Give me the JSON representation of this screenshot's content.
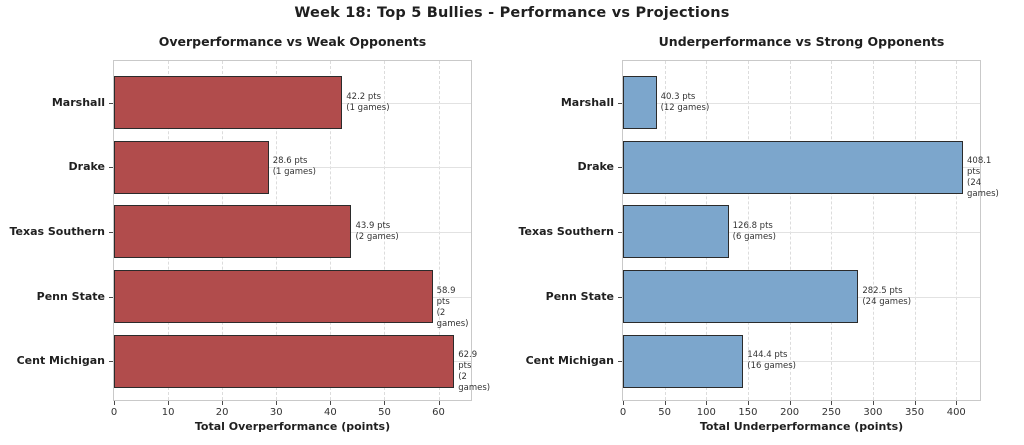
{
  "figure_title": "Week 18: Top 5 Bullies - Performance vs Projections",
  "colors": {
    "left_bar": "#b14c4c",
    "right_bar": "#7ca6cc",
    "bar_edge": "#2b2b2b",
    "spine": "#c9c9c9",
    "grid": "#dcdcdc",
    "text": "#1f1f1f"
  },
  "chart_data": [
    {
      "type": "bar",
      "orientation": "horizontal",
      "title": "Overperformance vs Weak Opponents",
      "categories": [
        "Marshall",
        "Drake",
        "Texas Southern",
        "Penn State",
        "Cent Michigan"
      ],
      "values": [
        42.2,
        28.6,
        43.9,
        58.9,
        62.9
      ],
      "games": [
        1,
        1,
        2,
        2,
        2
      ],
      "annotations": [
        "42.2 pts\n(1 games)",
        "28.6 pts\n(1 games)",
        "43.9 pts\n(2 games)",
        "58.9 pts\n(2 games)",
        "62.9 pts\n(2 games)"
      ],
      "xlabel": "Total Overperformance (points)",
      "ylabel": "",
      "xlim": [
        0,
        66
      ],
      "xticks": [
        0,
        10,
        20,
        30,
        40,
        50,
        60
      ],
      "grid": true,
      "legend": false,
      "bar_color": "#b14c4c"
    },
    {
      "type": "bar",
      "orientation": "horizontal",
      "title": "Underperformance vs Strong Opponents",
      "categories": [
        "Marshall",
        "Drake",
        "Texas Southern",
        "Penn State",
        "Cent Michigan"
      ],
      "values": [
        40.3,
        408.1,
        126.8,
        282.5,
        144.4
      ],
      "games": [
        12,
        24,
        6,
        24,
        16
      ],
      "annotations": [
        "40.3 pts\n(12 games)",
        "408.1 pts\n(24 games)",
        "126.8 pts\n(6 games)",
        "282.5 pts\n(24 games)",
        "144.4 pts\n(16 games)"
      ],
      "xlabel": "Total Underperformance (points)",
      "ylabel": "",
      "xlim": [
        0,
        428.5
      ],
      "xticks": [
        0,
        50,
        100,
        150,
        200,
        250,
        300,
        350,
        400
      ],
      "grid": true,
      "legend": false,
      "bar_color": "#7ca6cc"
    }
  ]
}
